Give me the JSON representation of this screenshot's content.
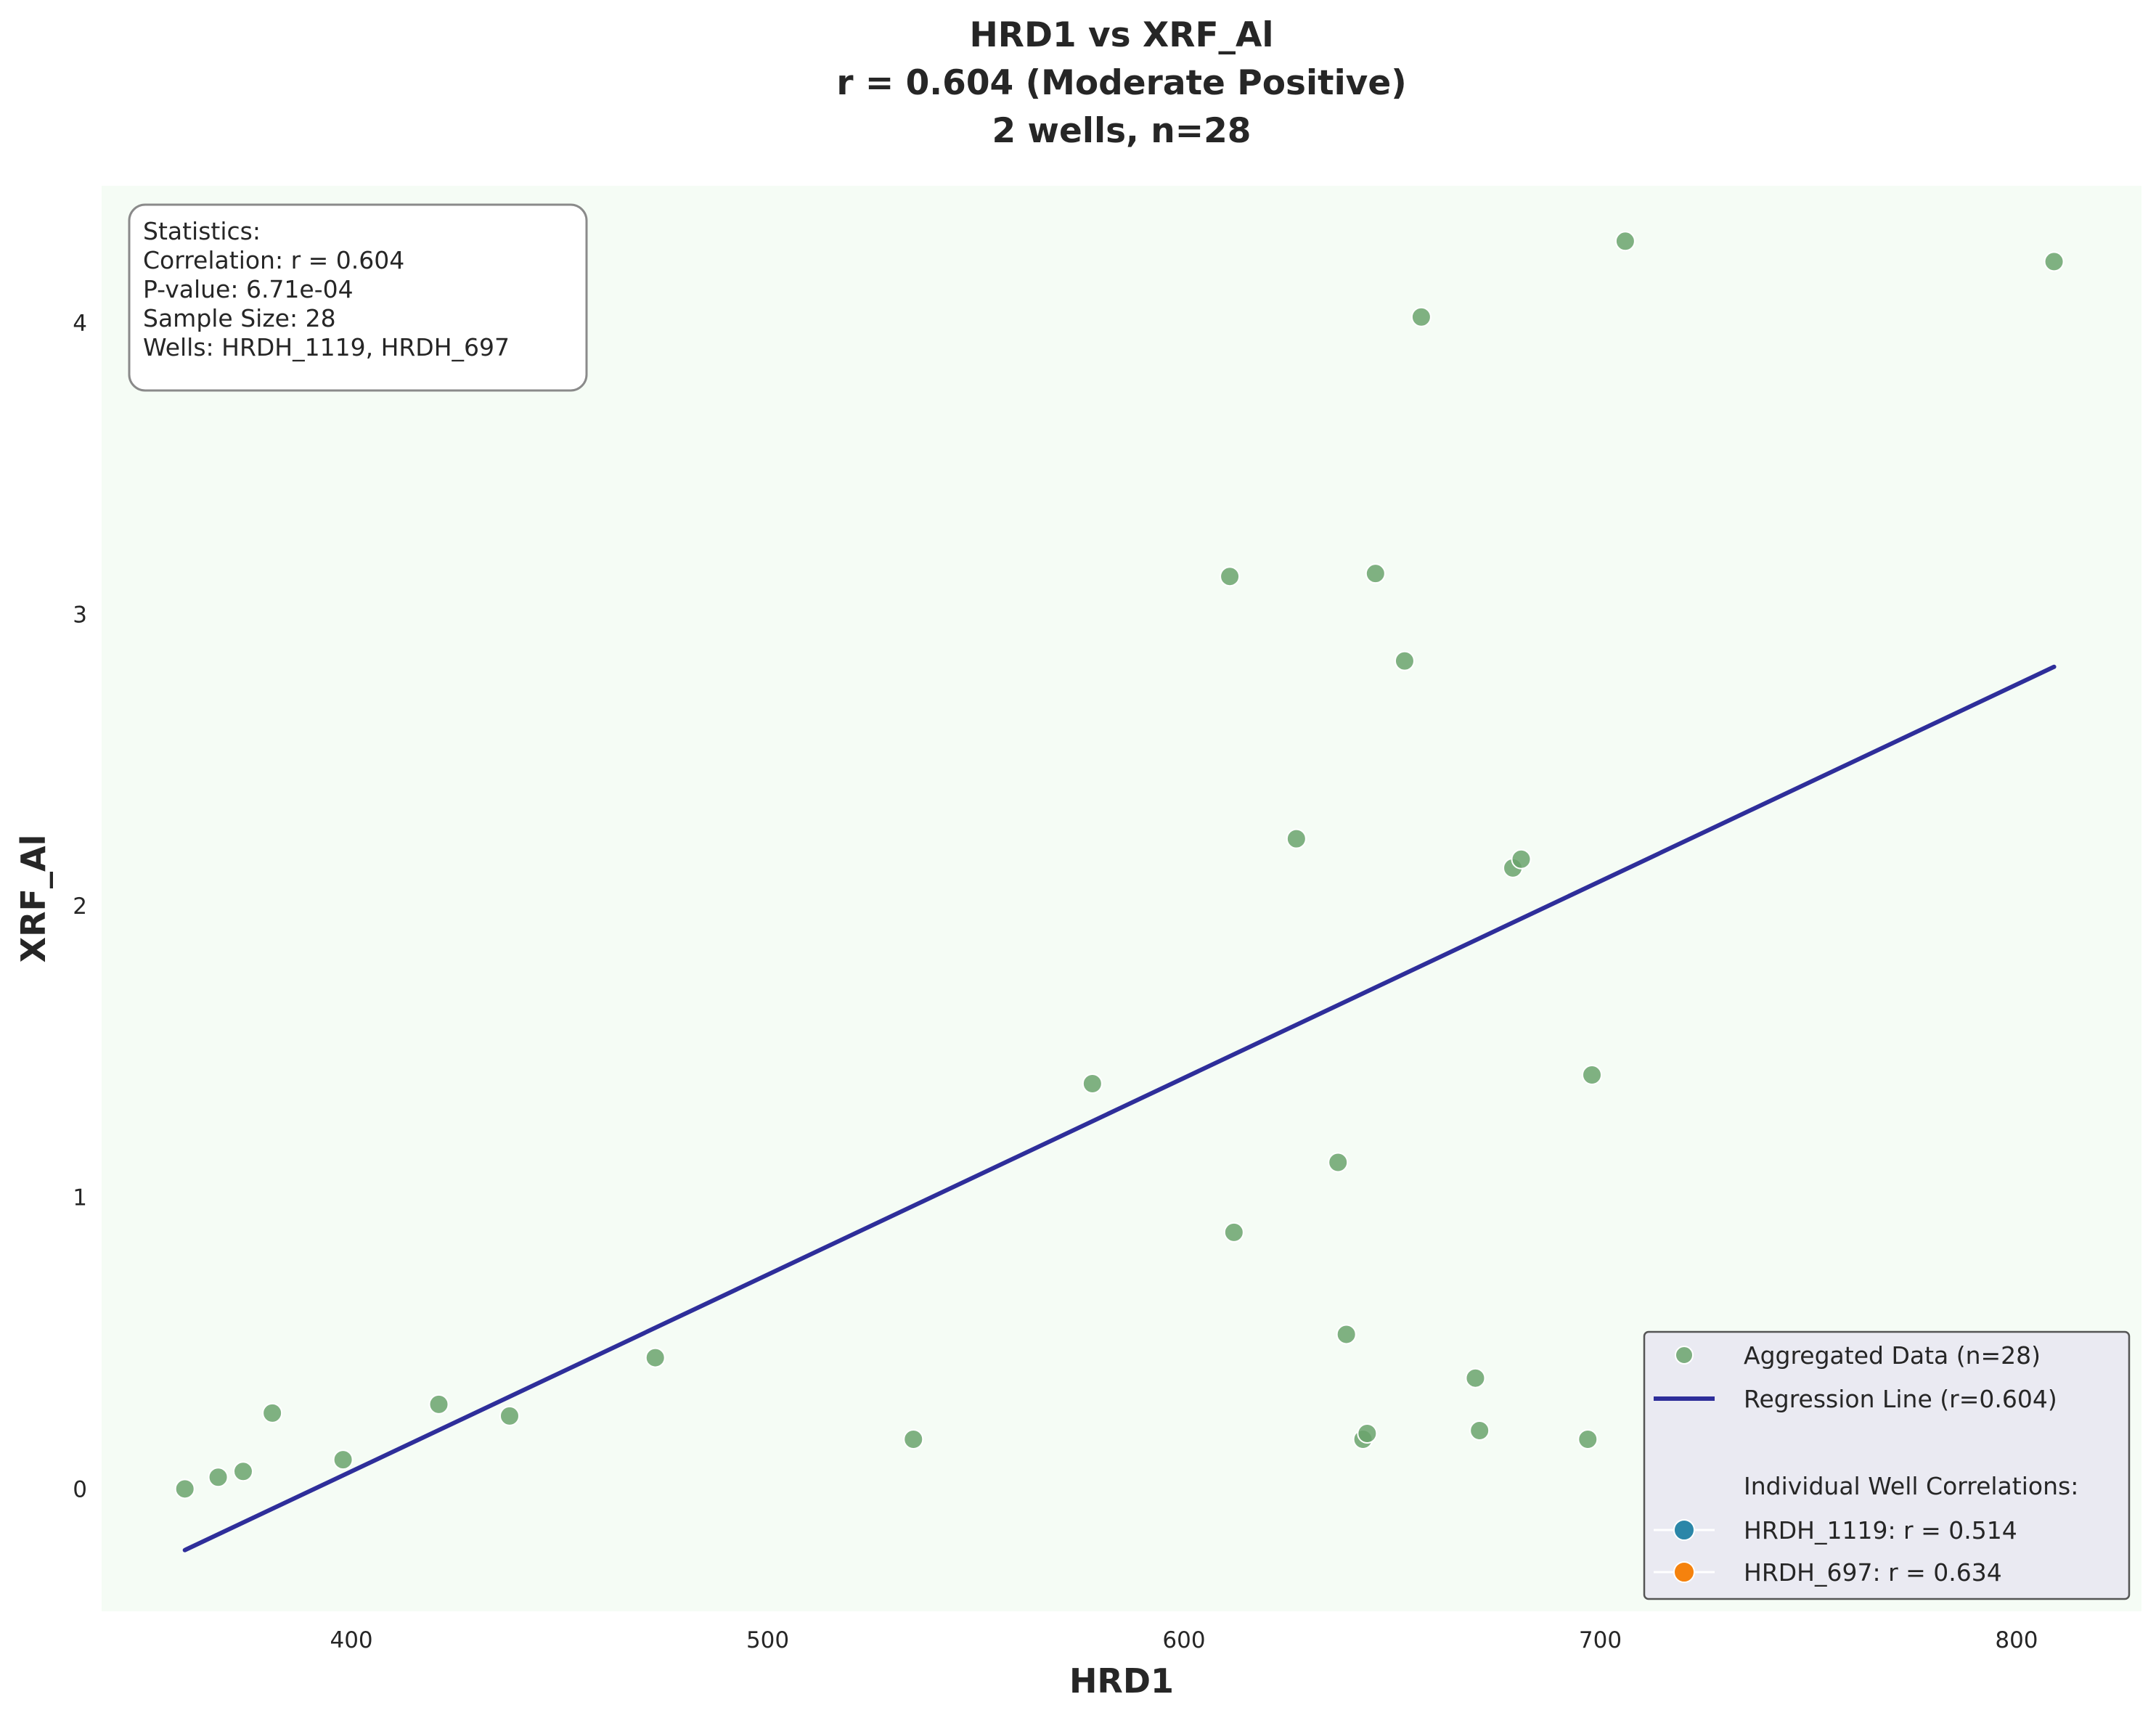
{
  "chart_data": {
    "type": "scatter",
    "title": [
      "HRD1 vs XRF_Al",
      "r = 0.604 (Moderate Positive)",
      "2 wells, n=28"
    ],
    "xlabel": "HRD1",
    "ylabel": "XRF_Al",
    "xlim": [
      340,
      830
    ],
    "ylim": [
      -0.42,
      4.47
    ],
    "xticks": [
      400,
      500,
      600,
      700,
      800
    ],
    "yticks": [
      0,
      1,
      2,
      3,
      4
    ],
    "grid": false,
    "background": "#f5fcf5",
    "series": [
      {
        "name": "Aggregated Data (n=28)",
        "color": "#6aa36c",
        "points": [
          [
            360,
            0.0
          ],
          [
            368,
            0.04
          ],
          [
            374,
            0.06
          ],
          [
            381,
            0.26
          ],
          [
            398,
            0.1
          ],
          [
            421,
            0.29
          ],
          [
            438,
            0.25
          ],
          [
            473,
            0.45
          ],
          [
            535,
            0.17
          ],
          [
            578,
            1.39
          ],
          [
            611,
            3.13
          ],
          [
            612,
            0.88
          ],
          [
            627,
            2.23
          ],
          [
            637,
            1.12
          ],
          [
            639,
            0.53
          ],
          [
            643,
            0.17
          ],
          [
            644,
            0.19
          ],
          [
            646,
            3.14
          ],
          [
            653,
            2.84
          ],
          [
            657,
            4.02
          ],
          [
            670,
            0.38
          ],
          [
            671,
            0.2
          ],
          [
            679,
            2.13
          ],
          [
            681,
            2.16
          ],
          [
            697,
            0.17
          ],
          [
            698,
            1.42
          ],
          [
            706,
            4.28
          ],
          [
            809,
            4.21
          ]
        ]
      }
    ],
    "regression": {
      "name": "Regression Line (r=0.604)",
      "color": "#2e2e9a",
      "x": [
        360,
        809
      ],
      "y": [
        -0.21,
        2.82
      ]
    },
    "stats_box": {
      "lines": [
        "Statistics:",
        "Correlation: r = 0.604",
        "P-value: 6.71e-04",
        "Sample Size: 28",
        "Wells: HRDH_1119, HRDH_697"
      ]
    },
    "legend": {
      "placement": "lower-right",
      "aggregated_label": "Aggregated Data (n=28)",
      "regression_label": "Regression Line (r=0.604)",
      "section_header": "Individual Well Correlations:",
      "wells": [
        {
          "label": "HRDH_1119: r = 0.514",
          "color": "#2b86a8"
        },
        {
          "label": "HRDH_697: r = 0.634",
          "color": "#f5820d"
        }
      ]
    }
  }
}
